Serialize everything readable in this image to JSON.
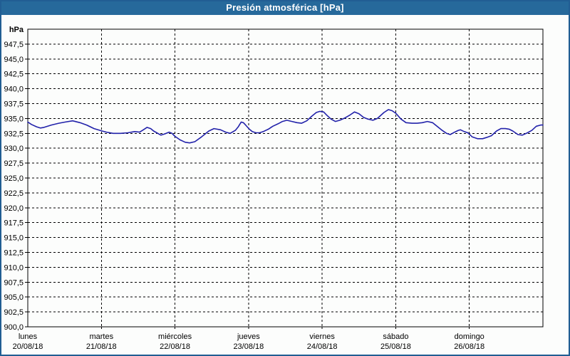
{
  "window": {
    "title": "Presión atmosférica [hPa]"
  },
  "colors": {
    "title_bar_bg": "#26699b",
    "title_text": "#ffffff",
    "outer_border": "#215e93",
    "page_bg": "#fcfdfc",
    "plot_border": "#000000",
    "grid": "#000000",
    "line": "#2222aa",
    "label_text": "#000000"
  },
  "chart_data": {
    "type": "line",
    "title": "Presión atmosférica [hPa]",
    "ylabel": "hPa",
    "xlabel": "",
    "ylim": [
      900,
      950
    ],
    "ytick_step": 2.5,
    "grid": "dashed",
    "legend": "none",
    "ytick_labels": [
      "947,5",
      "945,0",
      "942,5",
      "940,0",
      "937,5",
      "935,0",
      "932,5",
      "930,0",
      "927,5",
      "925,0",
      "922,5",
      "920,0",
      "917,5",
      "915,0",
      "912,5",
      "910,0",
      "907,5",
      "905,0",
      "902,5",
      "900,0"
    ],
    "x_days": [
      {
        "name": "lunes",
        "date": "20/08/18"
      },
      {
        "name": "martes",
        "date": "21/08/18"
      },
      {
        "name": "miércoles",
        "date": "22/08/18"
      },
      {
        "name": "jueves",
        "date": "23/08/18"
      },
      {
        "name": "viernes",
        "date": "24/08/18"
      },
      {
        "name": "sábado",
        "date": "25/08/18"
      },
      {
        "name": "domingo",
        "date": "26/08/18"
      }
    ],
    "series": [
      {
        "name": "Presión atmosférica",
        "color": "#2222aa",
        "points": [
          [
            0.0,
            934.4
          ],
          [
            0.05,
            934.0
          ],
          [
            0.12,
            933.6
          ],
          [
            0.17,
            933.4
          ],
          [
            0.22,
            933.5
          ],
          [
            0.32,
            933.9
          ],
          [
            0.42,
            934.2
          ],
          [
            0.51,
            934.4
          ],
          [
            0.61,
            934.6
          ],
          [
            0.71,
            934.3
          ],
          [
            0.8,
            933.9
          ],
          [
            0.9,
            933.3
          ],
          [
            1.01,
            932.9
          ],
          [
            1.07,
            932.7
          ],
          [
            1.16,
            932.5
          ],
          [
            1.26,
            932.5
          ],
          [
            1.36,
            932.6
          ],
          [
            1.45,
            932.8
          ],
          [
            1.52,
            932.7
          ],
          [
            1.57,
            933.1
          ],
          [
            1.62,
            933.5
          ],
          [
            1.67,
            933.3
          ],
          [
            1.71,
            932.9
          ],
          [
            1.81,
            932.2
          ],
          [
            1.86,
            932.4
          ],
          [
            1.92,
            932.7
          ],
          [
            1.96,
            932.5
          ],
          [
            2.0,
            932.0
          ],
          [
            2.07,
            931.4
          ],
          [
            2.14,
            931.0
          ],
          [
            2.2,
            930.9
          ],
          [
            2.27,
            931.1
          ],
          [
            2.36,
            931.9
          ],
          [
            2.46,
            932.9
          ],
          [
            2.53,
            933.3
          ],
          [
            2.62,
            933.1
          ],
          [
            2.69,
            932.7
          ],
          [
            2.75,
            932.5
          ],
          [
            2.82,
            933.0
          ],
          [
            2.86,
            933.6
          ],
          [
            2.9,
            934.4
          ],
          [
            2.93,
            934.3
          ],
          [
            2.96,
            933.9
          ],
          [
            3.01,
            933.2
          ],
          [
            3.05,
            932.8
          ],
          [
            3.1,
            932.6
          ],
          [
            3.15,
            932.6
          ],
          [
            3.2,
            932.8
          ],
          [
            3.27,
            933.2
          ],
          [
            3.33,
            933.7
          ],
          [
            3.4,
            934.1
          ],
          [
            3.46,
            934.5
          ],
          [
            3.52,
            934.7
          ],
          [
            3.59,
            934.5
          ],
          [
            3.66,
            934.3
          ],
          [
            3.72,
            934.2
          ],
          [
            3.79,
            934.6
          ],
          [
            3.86,
            935.4
          ],
          [
            3.92,
            936.0
          ],
          [
            3.97,
            936.2
          ],
          [
            4.02,
            936.1
          ],
          [
            4.06,
            935.6
          ],
          [
            4.12,
            934.9
          ],
          [
            4.18,
            934.5
          ],
          [
            4.24,
            934.7
          ],
          [
            4.31,
            935.1
          ],
          [
            4.38,
            935.6
          ],
          [
            4.44,
            936.1
          ],
          [
            4.5,
            935.8
          ],
          [
            4.56,
            935.2
          ],
          [
            4.62,
            934.9
          ],
          [
            4.69,
            934.7
          ],
          [
            4.75,
            935.0
          ],
          [
            4.84,
            936.0
          ],
          [
            4.9,
            936.5
          ],
          [
            4.95,
            936.3
          ],
          [
            5.0,
            935.9
          ],
          [
            5.07,
            934.9
          ],
          [
            5.14,
            934.3
          ],
          [
            5.22,
            934.2
          ],
          [
            5.29,
            934.2
          ],
          [
            5.36,
            934.3
          ],
          [
            5.43,
            934.5
          ],
          [
            5.5,
            934.3
          ],
          [
            5.56,
            933.7
          ],
          [
            5.62,
            933.1
          ],
          [
            5.69,
            932.5
          ],
          [
            5.74,
            932.3
          ],
          [
            5.8,
            932.7
          ],
          [
            5.85,
            933.0
          ],
          [
            5.88,
            933.1
          ],
          [
            5.93,
            932.8
          ],
          [
            5.98,
            932.6
          ],
          [
            6.04,
            931.9
          ],
          [
            6.11,
            931.6
          ],
          [
            6.18,
            931.6
          ],
          [
            6.23,
            931.8
          ],
          [
            6.3,
            932.1
          ],
          [
            6.37,
            932.9
          ],
          [
            6.43,
            933.3
          ],
          [
            6.49,
            933.3
          ],
          [
            6.54,
            933.2
          ],
          [
            6.59,
            932.9
          ],
          [
            6.66,
            932.3
          ],
          [
            6.72,
            932.2
          ],
          [
            6.79,
            932.6
          ],
          [
            6.85,
            933.0
          ],
          [
            6.91,
            933.7
          ],
          [
            6.97,
            933.9
          ],
          [
            7.0,
            933.9
          ]
        ]
      }
    ]
  }
}
